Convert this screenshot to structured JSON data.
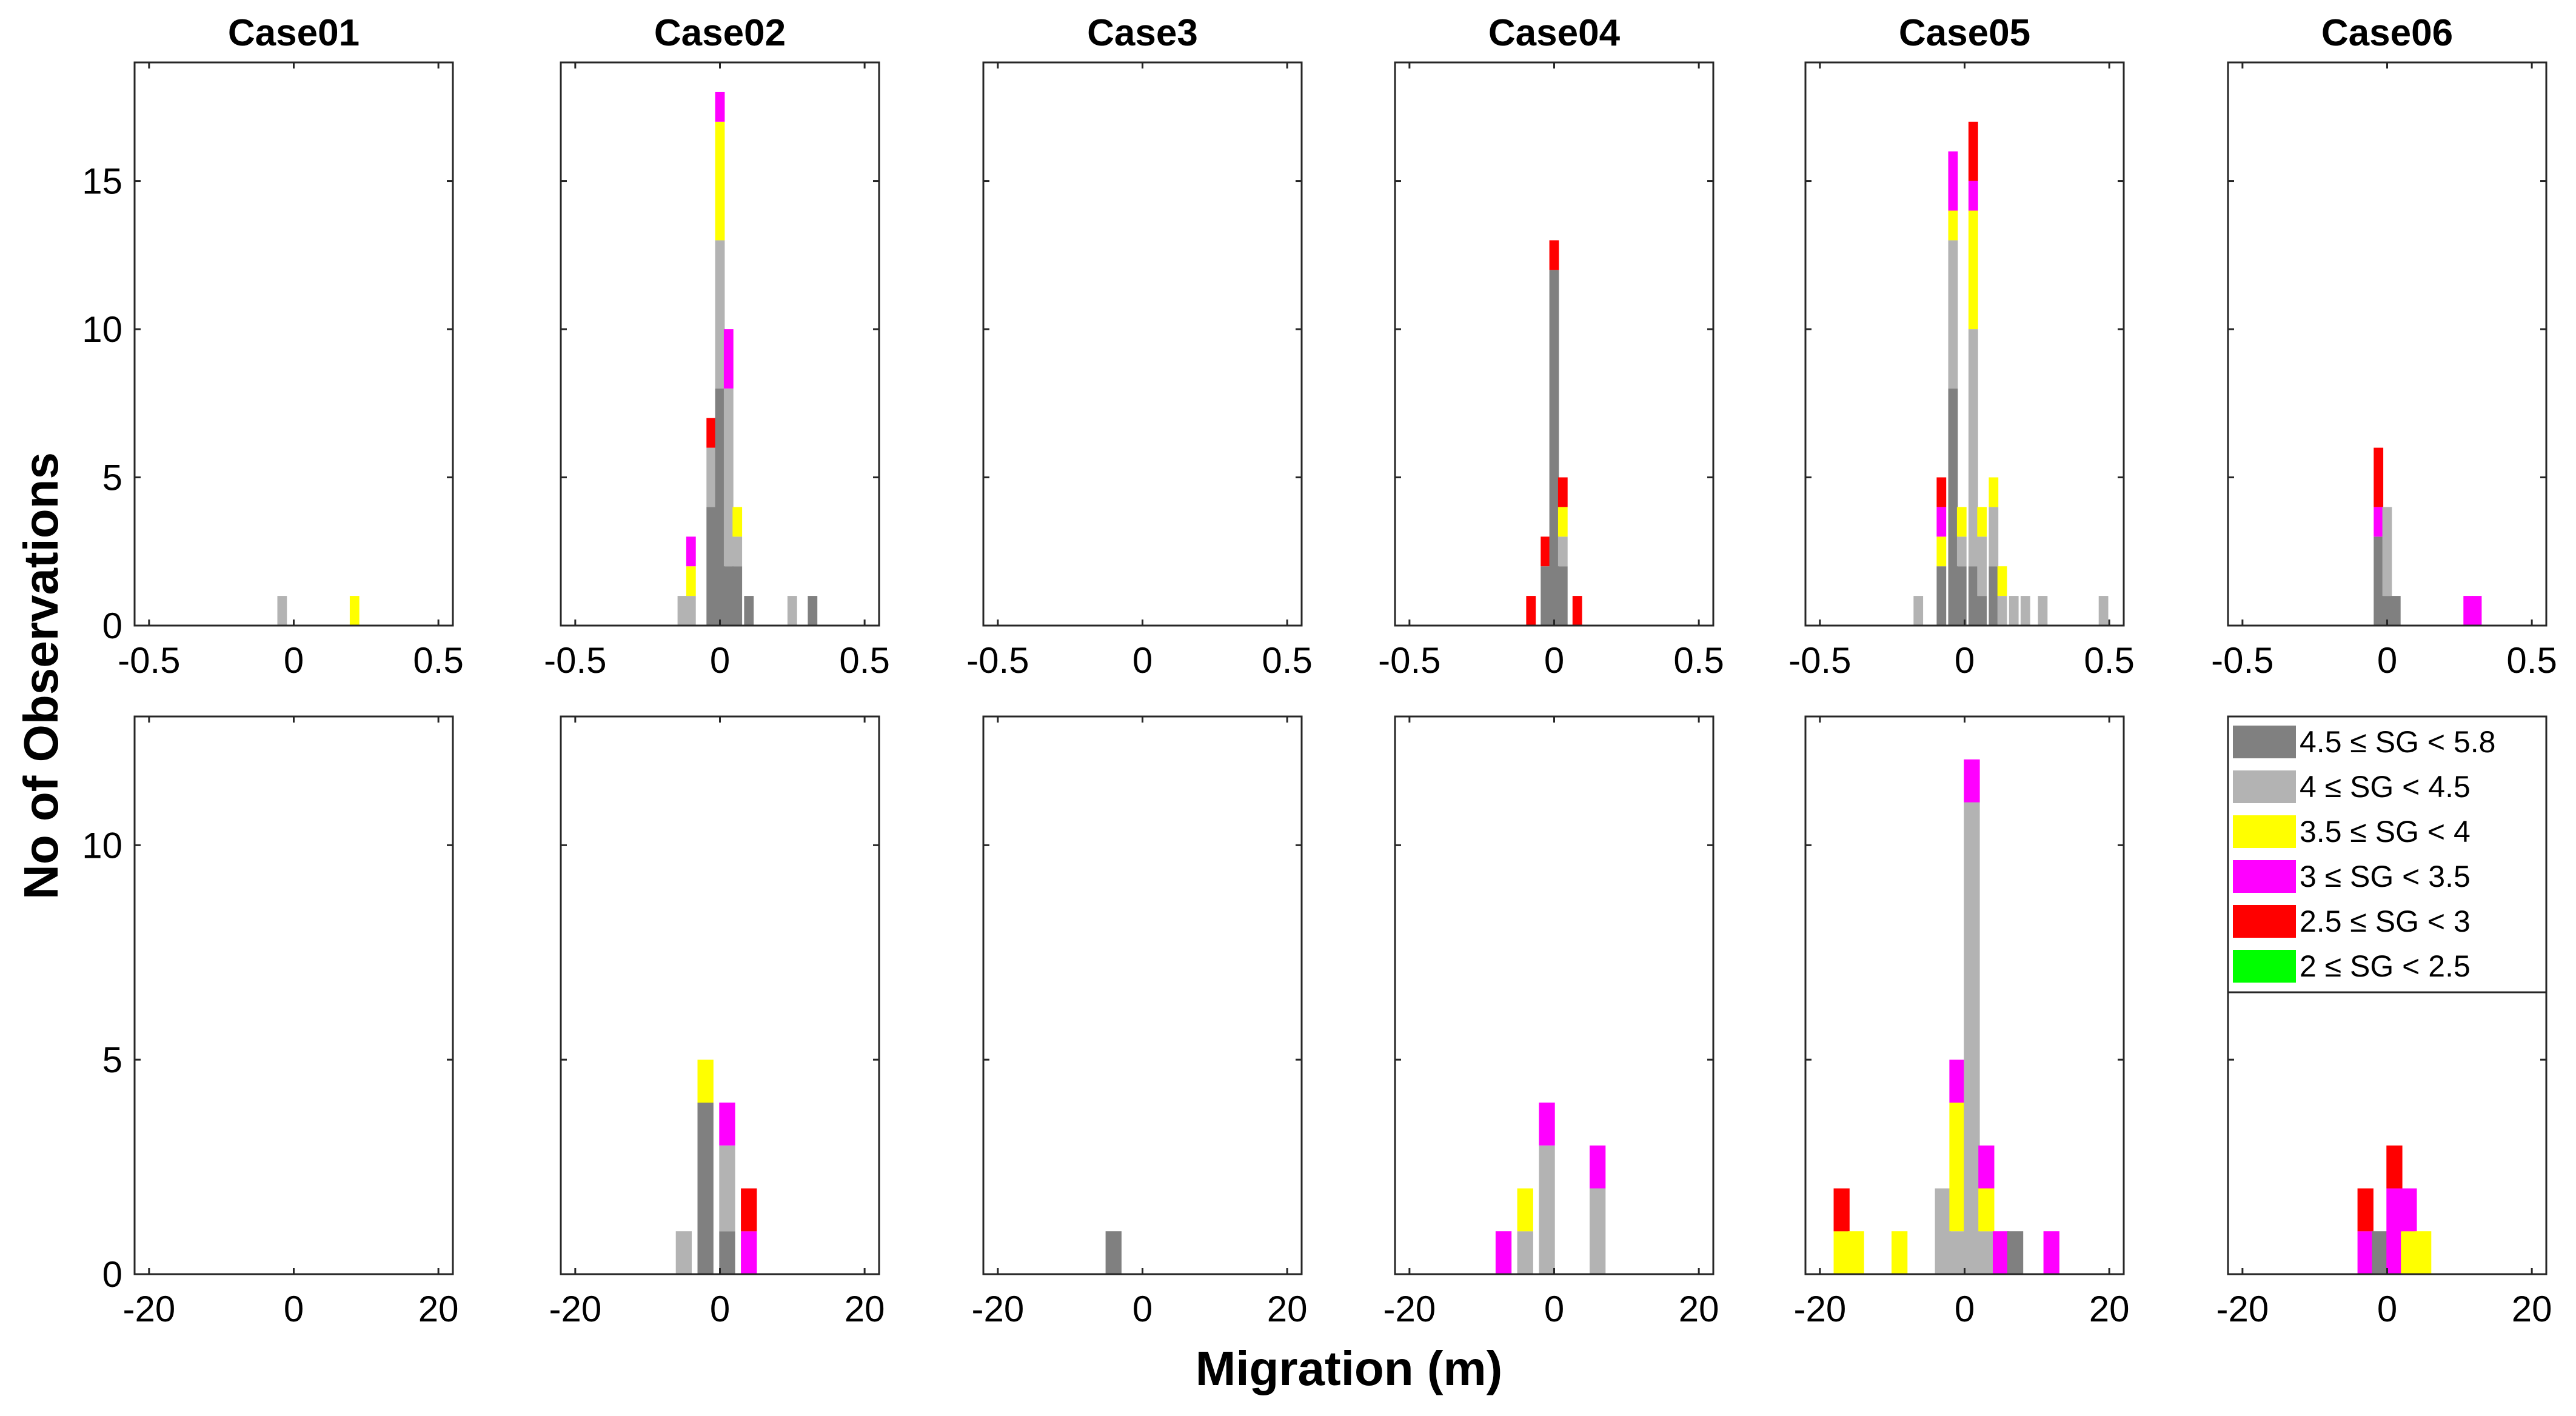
{
  "figure": {
    "ylabel": "No of Observations",
    "xlabel": "Migration (m)"
  },
  "legend": {
    "placement": "bottom-row-right-panel",
    "items": [
      {
        "label": "4.5 ≤  SG < 5.8",
        "color": "#808080"
      },
      {
        "label": "4 ≤  SG < 4.5",
        "color": "#b3b3b3"
      },
      {
        "label": "3.5 ≤  SG < 4",
        "color": "#ffff00"
      },
      {
        "label": "3 ≤  SG < 3.5",
        "color": "#ff00ff"
      },
      {
        "label": "2.5 ≤  SG < 3",
        "color": "#ff0000"
      },
      {
        "label": "2 ≤  SG < 2.5",
        "color": "#00ff00"
      }
    ]
  },
  "chart_data": {
    "type": "bar",
    "stacked": true,
    "grid": false,
    "rows": [
      {
        "xlim": [
          -0.55,
          0.55
        ],
        "ylim": [
          0,
          19
        ],
        "xticks": [
          -0.5,
          0,
          0.5
        ],
        "xtick_labels": [
          "-0.5",
          "0",
          "0.5"
        ],
        "yticks": [
          0,
          5,
          10,
          15
        ],
        "ytick_labels": [
          "0",
          "5",
          "10",
          "15"
        ],
        "bar_width": 0.033
      },
      {
        "xlim": [
          -22,
          22
        ],
        "ylim": [
          0,
          13
        ],
        "xticks": [
          -20,
          0,
          20
        ],
        "xtick_labels": [
          "-20",
          "0",
          "20"
        ],
        "yticks": [
          0,
          5,
          10
        ],
        "ytick_labels": [
          "0",
          "5",
          "10"
        ],
        "bar_width": 2.2
      }
    ],
    "panels": [
      {
        "title": "Case01",
        "row": 0,
        "col": 0,
        "bars": [
          {
            "x": -0.04,
            "stack": [
              0,
              1,
              0,
              0,
              0,
              0
            ]
          },
          {
            "x": 0.21,
            "stack": [
              0,
              0,
              1,
              0,
              0,
              0
            ]
          }
        ]
      },
      {
        "title": "Case02",
        "row": 0,
        "col": 1,
        "bars": [
          {
            "x": -0.13,
            "stack": [
              0,
              1,
              0,
              0,
              0,
              0
            ]
          },
          {
            "x": -0.1,
            "stack": [
              0,
              1,
              1,
              1,
              0,
              0
            ]
          },
          {
            "x": -0.03,
            "stack": [
              4,
              2,
              0,
              0,
              1,
              0
            ]
          },
          {
            "x": 0.0,
            "stack": [
              8,
              5,
              4,
              1,
              0,
              0
            ]
          },
          {
            "x": 0.03,
            "stack": [
              2,
              6,
              0,
              2,
              0,
              0
            ]
          },
          {
            "x": 0.06,
            "stack": [
              2,
              1,
              1,
              0,
              0,
              0
            ]
          },
          {
            "x": 0.1,
            "stack": [
              1,
              0,
              0,
              0,
              0,
              0
            ]
          },
          {
            "x": 0.25,
            "stack": [
              0,
              1,
              0,
              0,
              0,
              0
            ]
          },
          {
            "x": 0.32,
            "stack": [
              1,
              0,
              0,
              0,
              0,
              0
            ]
          }
        ]
      },
      {
        "title": "Case3",
        "row": 0,
        "col": 2,
        "bars": []
      },
      {
        "title": "Case04",
        "row": 0,
        "col": 3,
        "bars": [
          {
            "x": -0.08,
            "stack": [
              0,
              0,
              0,
              0,
              1,
              0
            ]
          },
          {
            "x": -0.03,
            "stack": [
              2,
              0,
              0,
              0,
              1,
              0
            ]
          },
          {
            "x": 0.0,
            "stack": [
              12,
              0,
              0,
              0,
              1,
              0
            ]
          },
          {
            "x": 0.03,
            "stack": [
              2,
              1,
              1,
              0,
              1,
              0
            ]
          },
          {
            "x": 0.08,
            "stack": [
              0,
              0,
              0,
              0,
              1,
              0
            ]
          }
        ]
      },
      {
        "title": "Case05",
        "row": 0,
        "col": 4,
        "bars": [
          {
            "x": -0.16,
            "stack": [
              0,
              1,
              0,
              0,
              0,
              0
            ]
          },
          {
            "x": -0.08,
            "stack": [
              2,
              0,
              1,
              1,
              1,
              0
            ]
          },
          {
            "x": -0.04,
            "stack": [
              8,
              5,
              1,
              2,
              0,
              0
            ]
          },
          {
            "x": -0.01,
            "stack": [
              2,
              1,
              1,
              0,
              0,
              0
            ]
          },
          {
            "x": 0.03,
            "stack": [
              2,
              8,
              4,
              1,
              2,
              0
            ]
          },
          {
            "x": 0.06,
            "stack": [
              1,
              2,
              1,
              0,
              0,
              0
            ]
          },
          {
            "x": 0.1,
            "stack": [
              2,
              2,
              1,
              0,
              0,
              0
            ]
          },
          {
            "x": 0.13,
            "stack": [
              0,
              1,
              1,
              0,
              0,
              0
            ]
          },
          {
            "x": 0.17,
            "stack": [
              0,
              1,
              0,
              0,
              0,
              0
            ]
          },
          {
            "x": 0.21,
            "stack": [
              0,
              1,
              0,
              0,
              0,
              0
            ]
          },
          {
            "x": 0.27,
            "stack": [
              0,
              1,
              0,
              0,
              0,
              0
            ]
          },
          {
            "x": 0.48,
            "stack": [
              0,
              1,
              0,
              0,
              0,
              0
            ]
          }
        ]
      },
      {
        "title": "Case06",
        "row": 0,
        "col": 5,
        "bars": [
          {
            "x": -0.03,
            "stack": [
              3,
              0,
              0,
              1,
              2,
              0
            ]
          },
          {
            "x": 0.0,
            "stack": [
              1,
              3,
              0,
              0,
              0,
              0
            ]
          },
          {
            "x": 0.03,
            "stack": [
              1,
              0,
              0,
              0,
              0,
              0
            ]
          },
          {
            "x": 0.28,
            "stack": [
              0,
              0,
              0,
              1,
              0,
              0
            ]
          },
          {
            "x": 0.31,
            "stack": [
              0,
              0,
              0,
              1,
              0,
              0
            ]
          }
        ]
      },
      {
        "title": "",
        "row": 1,
        "col": 0,
        "bars": []
      },
      {
        "title": "",
        "row": 1,
        "col": 1,
        "bars": [
          {
            "x": -5,
            "stack": [
              0,
              1,
              0,
              0,
              0,
              0
            ]
          },
          {
            "x": -2,
            "stack": [
              4,
              0,
              1,
              0,
              0,
              0
            ]
          },
          {
            "x": 1,
            "stack": [
              1,
              2,
              0,
              1,
              0,
              0
            ]
          },
          {
            "x": 4,
            "stack": [
              0,
              0,
              0,
              1,
              1,
              0
            ]
          }
        ]
      },
      {
        "title": "",
        "row": 1,
        "col": 2,
        "bars": [
          {
            "x": -4,
            "stack": [
              1,
              0,
              0,
              0,
              0,
              0
            ]
          }
        ]
      },
      {
        "title": "",
        "row": 1,
        "col": 3,
        "bars": [
          {
            "x": -7,
            "stack": [
              0,
              0,
              0,
              1,
              0,
              0
            ]
          },
          {
            "x": -4,
            "stack": [
              0,
              1,
              1,
              0,
              0,
              0
            ]
          },
          {
            "x": -1,
            "stack": [
              0,
              3,
              0,
              1,
              0,
              0
            ]
          },
          {
            "x": 6,
            "stack": [
              0,
              2,
              0,
              1,
              0,
              0
            ]
          }
        ]
      },
      {
        "title": "",
        "row": 1,
        "col": 4,
        "bars": [
          {
            "x": -17,
            "stack": [
              0,
              0,
              1,
              0,
              1,
              0
            ]
          },
          {
            "x": -15,
            "stack": [
              0,
              0,
              1,
              0,
              0,
              0
            ]
          },
          {
            "x": -9,
            "stack": [
              0,
              0,
              1,
              0,
              0,
              0
            ]
          },
          {
            "x": -3,
            "stack": [
              0,
              2,
              0,
              0,
              0,
              0
            ]
          },
          {
            "x": -1,
            "stack": [
              0,
              1,
              3,
              1,
              0,
              0
            ]
          },
          {
            "x": 1,
            "stack": [
              0,
              11,
              0,
              1,
              0,
              0
            ]
          },
          {
            "x": 3,
            "stack": [
              0,
              1,
              1,
              1,
              0,
              0
            ]
          },
          {
            "x": 5,
            "stack": [
              0,
              0,
              0,
              1,
              0,
              0
            ]
          },
          {
            "x": 7,
            "stack": [
              1,
              0,
              0,
              0,
              0,
              0
            ]
          },
          {
            "x": 12,
            "stack": [
              0,
              0,
              0,
              1,
              0,
              0
            ]
          }
        ]
      },
      {
        "title": "",
        "row": 1,
        "col": 5,
        "bars": [
          {
            "x": -3,
            "stack": [
              0,
              0,
              0,
              1,
              1,
              0
            ]
          },
          {
            "x": -1,
            "stack": [
              1,
              0,
              0,
              0,
              0,
              0
            ]
          },
          {
            "x": 1,
            "stack": [
              0,
              0,
              0,
              2,
              1,
              0
            ]
          },
          {
            "x": 3,
            "stack": [
              0,
              0,
              1,
              1,
              0,
              0
            ]
          },
          {
            "x": 5,
            "stack": [
              0,
              0,
              1,
              0,
              0,
              0
            ]
          }
        ]
      }
    ]
  }
}
